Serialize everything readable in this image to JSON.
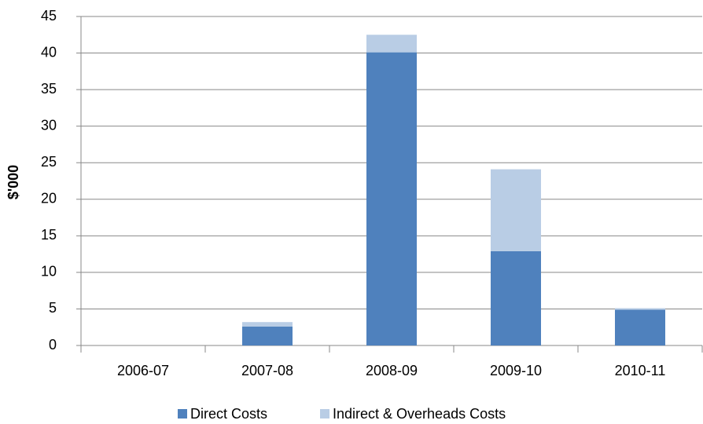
{
  "chart_data": {
    "type": "stacked_bar",
    "y_label": "$'000",
    "categories": [
      "2006-07",
      "2007-08",
      "2008-09",
      "2009-10",
      "2010-11"
    ],
    "series": [
      {
        "name": "Direct Costs",
        "color": "#4f81bd",
        "values": [
          0,
          2.6,
          40.1,
          12.9,
          4.9
        ]
      },
      {
        "name": "Indirect & Overheads Costs",
        "color": "#b9cde5",
        "values": [
          0,
          0.6,
          2.4,
          11.2,
          0.2
        ]
      }
    ],
    "ylim": [
      0,
      45
    ],
    "yticks": [
      0,
      5,
      10,
      15,
      20,
      25,
      30,
      35,
      40,
      45
    ],
    "grid": true,
    "legend": "bottom"
  }
}
